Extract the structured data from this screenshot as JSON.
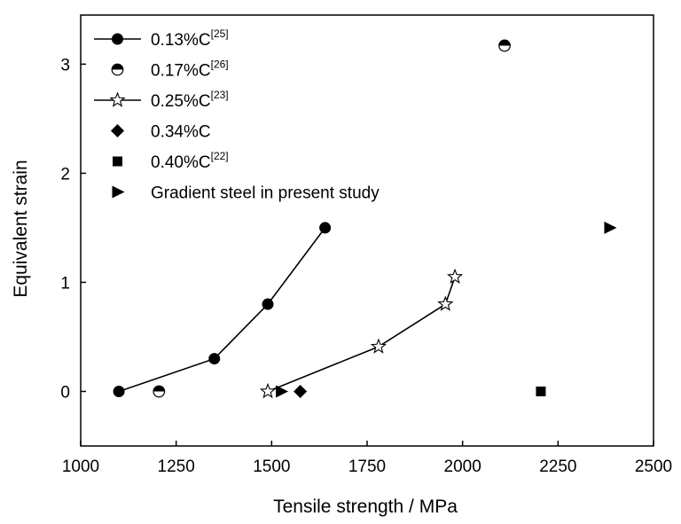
{
  "chart_data": {
    "type": "scatter",
    "xlabel": "Tensile strength / MPa",
    "ylabel": "Equivalent strain",
    "xlim": [
      1000,
      2500
    ],
    "ylim": [
      -0.5,
      3.45
    ],
    "xticks": [
      1000,
      1250,
      1500,
      1750,
      2000,
      2250,
      2500
    ],
    "yticks": [
      0,
      1,
      2,
      3
    ],
    "grid": false,
    "legend_position": "top-left",
    "series": [
      {
        "name": "0.13%C",
        "ref": "[25]",
        "marker": "circle-filled",
        "connected": true,
        "points": [
          [
            1100,
            0
          ],
          [
            1350,
            0.3
          ],
          [
            1490,
            0.8
          ],
          [
            1640,
            1.5
          ]
        ]
      },
      {
        "name": "0.17%C",
        "ref": "[26]",
        "marker": "circle-half",
        "connected": false,
        "points": [
          [
            1205,
            0
          ],
          [
            2110,
            3.17
          ]
        ]
      },
      {
        "name": "0.25%C",
        "ref": "[23]",
        "marker": "star-open",
        "connected": true,
        "points": [
          [
            1490,
            0
          ],
          [
            1780,
            0.41
          ],
          [
            1955,
            0.8
          ],
          [
            1980,
            1.05
          ]
        ]
      },
      {
        "name": "0.34%C",
        "ref": "",
        "marker": "diamond-filled",
        "connected": false,
        "points": [
          [
            1575,
            0
          ]
        ]
      },
      {
        "name": "0.40%C",
        "ref": "[22]",
        "marker": "square-filled",
        "connected": false,
        "points": [
          [
            2205,
            0
          ]
        ]
      },
      {
        "name": "Gradient steel in present study",
        "ref": "",
        "marker": "triangle-right-filled",
        "connected": false,
        "points": [
          [
            1525,
            0
          ],
          [
            2385,
            1.5
          ]
        ]
      }
    ]
  }
}
